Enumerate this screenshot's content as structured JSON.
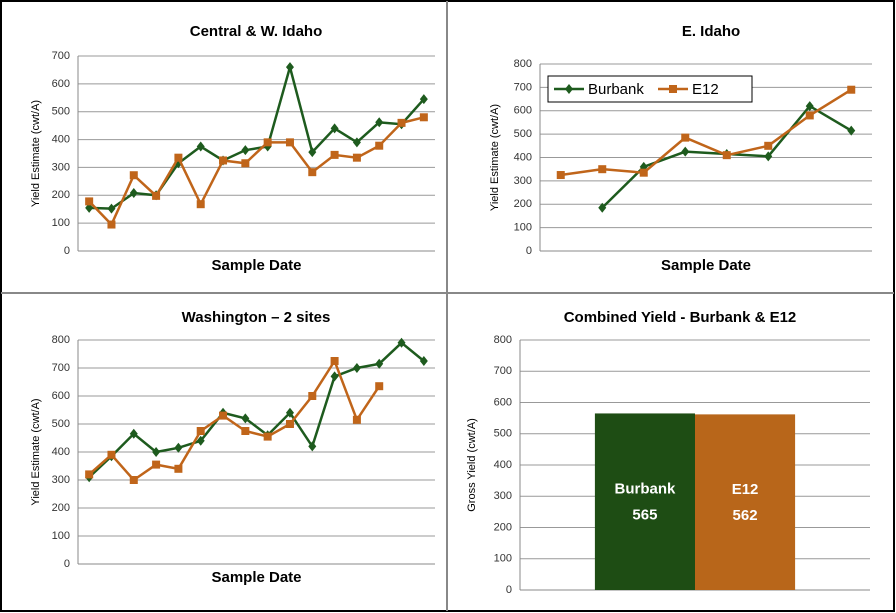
{
  "chart_data": [
    {
      "type": "line",
      "title": "Central & W. Idaho",
      "xlabel": "Sample Date",
      "ylabel": "Yield Estimate (cwt/A)",
      "categories": [
        null,
        null,
        null,
        null,
        null,
        null,
        null,
        null,
        null,
        null,
        null,
        null,
        null,
        null,
        null,
        null
      ],
      "series": [
        {
          "color": "#1e5b1e",
          "marker": "diamond",
          "values": [
            155,
            152,
            208,
            200,
            315,
            375,
            325,
            362,
            375,
            660,
            355,
            440,
            390,
            462,
            455,
            545
          ]
        },
        {
          "color": "#c0651a",
          "marker": "square",
          "values": [
            178,
            95,
            272,
            198,
            335,
            168,
            325,
            315,
            390,
            390,
            283,
            345,
            335,
            378,
            460,
            480
          ]
        }
      ],
      "ylim": [
        0,
        700
      ],
      "yticks": [
        0,
        100,
        200,
        300,
        400,
        500,
        600,
        700
      ],
      "grid": true
    },
    {
      "type": "line",
      "title": "E. Idaho",
      "xlabel": "Sample Date",
      "ylabel": "Yield Estimate (cwt/A)",
      "categories": [
        null,
        null,
        null,
        null,
        null,
        null,
        null,
        null
      ],
      "series": [
        {
          "name": "Burbank",
          "color": "#1e5b1e",
          "marker": "diamond",
          "values": [
            null,
            185,
            360,
            425,
            415,
            405,
            620,
            515
          ]
        },
        {
          "name": "E12",
          "color": "#c0651a",
          "marker": "square",
          "values": [
            325,
            350,
            335,
            485,
            410,
            450,
            580,
            690
          ]
        }
      ],
      "ylim": [
        0,
        800
      ],
      "yticks": [
        0,
        100,
        200,
        300,
        400,
        500,
        600,
        700,
        800
      ],
      "grid": true,
      "legend": "upper left"
    },
    {
      "type": "line",
      "title": "Washington – 2 sites",
      "xlabel": "Sample Date",
      "ylabel": "Yield Estimate (cwt/A)",
      "categories": [
        null,
        null,
        null,
        null,
        null,
        null,
        null,
        null,
        null,
        null,
        null,
        null,
        null,
        null,
        null,
        null
      ],
      "series": [
        {
          "color": "#1e5b1e",
          "marker": "diamond",
          "values": [
            310,
            385,
            465,
            400,
            415,
            440,
            540,
            520,
            460,
            540,
            420,
            670,
            700,
            715,
            790,
            725
          ]
        },
        {
          "color": "#c0651a",
          "marker": "square",
          "values": [
            320,
            390,
            300,
            355,
            340,
            475,
            530,
            475,
            455,
            500,
            600,
            725,
            515,
            635,
            null,
            null
          ]
        }
      ],
      "ylim": [
        0,
        800
      ],
      "yticks": [
        0,
        100,
        200,
        300,
        400,
        500,
        600,
        700,
        800
      ],
      "grid": true
    },
    {
      "type": "bar",
      "title": "Combined Yield - Burbank & E12",
      "ylabel": "Gross Yield (cwt/A)",
      "categories": [
        "Burbank",
        "E12"
      ],
      "values": [
        565,
        562
      ],
      "colors": [
        "#1e4d14",
        "#b8661a"
      ],
      "ylim": [
        0,
        800
      ],
      "yticks": [
        0,
        100,
        200,
        300,
        400,
        500,
        600,
        700,
        800
      ],
      "grid": true
    }
  ]
}
